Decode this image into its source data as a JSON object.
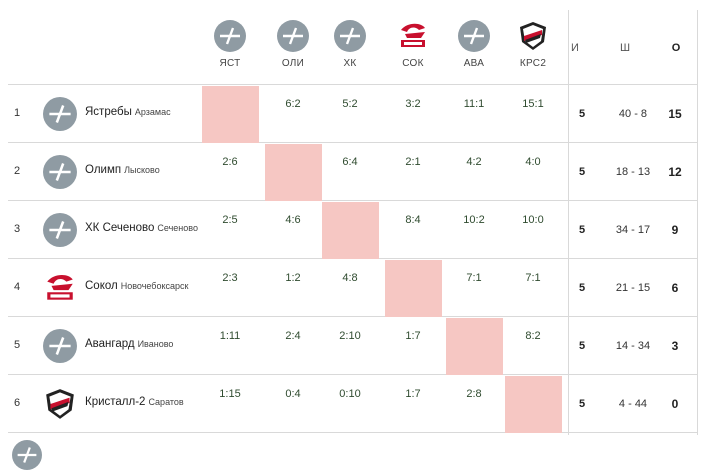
{
  "header": {
    "teams": [
      {
        "abbr": "ЯСТ",
        "icon": "placeholder-logo"
      },
      {
        "abbr": "ОЛИ",
        "icon": "placeholder-logo"
      },
      {
        "abbr": "ХК",
        "icon": "placeholder-logo"
      },
      {
        "abbr": "СОК",
        "icon": "sokol-logo"
      },
      {
        "abbr": "АВА",
        "icon": "placeholder-logo"
      },
      {
        "abbr": "КРС2",
        "icon": "kristall-logo"
      }
    ],
    "stats": {
      "games": "И",
      "goals": "Ш",
      "points": "О"
    }
  },
  "rows": [
    {
      "num": "1",
      "name": "Ястребы",
      "city": "Арзамас",
      "icon": "placeholder-logo",
      "results": [
        "",
        "6:2",
        "5:2",
        "3:2",
        "11:1",
        "15:1"
      ],
      "games": "5",
      "goals": "40 - 8",
      "points": "15"
    },
    {
      "num": "2",
      "name": "Олимп",
      "city": "Лысково",
      "icon": "placeholder-logo",
      "results": [
        "2:6",
        "",
        "6:4",
        "2:1",
        "4:2",
        "4:0"
      ],
      "games": "5",
      "goals": "18 - 13",
      "points": "12"
    },
    {
      "num": "3",
      "name": "ХК Сеченово",
      "city": "Сеченово",
      "icon": "placeholder-logo",
      "results": [
        "2:5",
        "4:6",
        "",
        "8:4",
        "10:2",
        "10:0"
      ],
      "games": "5",
      "goals": "34 - 17",
      "points": "9"
    },
    {
      "num": "4",
      "name": "Сокол",
      "city": "Новочебоксарск",
      "icon": "sokol-logo",
      "results": [
        "2:3",
        "1:2",
        "4:8",
        "",
        "7:1",
        "7:1"
      ],
      "games": "5",
      "goals": "21 - 15",
      "points": "6"
    },
    {
      "num": "5",
      "name": "Авангард",
      "city": "Иваново",
      "icon": "placeholder-logo",
      "results": [
        "1:11",
        "2:4",
        "2:10",
        "1:7",
        "",
        "8:2"
      ],
      "games": "5",
      "goals": "14 - 34",
      "points": "3"
    },
    {
      "num": "6",
      "name": "Кристалл-2",
      "city": "Саратов",
      "icon": "kristall-logo",
      "results": [
        "1:15",
        "0:4",
        "0:10",
        "1:7",
        "2:8",
        ""
      ],
      "games": "5",
      "goals": "4 - 44",
      "points": "0"
    }
  ],
  "colors": {
    "diagonal": "#f6c7c3",
    "result_text": "#2f4b2f",
    "placeholder_logo": "#8f9ba3",
    "sokol_red": "#c8102e"
  }
}
